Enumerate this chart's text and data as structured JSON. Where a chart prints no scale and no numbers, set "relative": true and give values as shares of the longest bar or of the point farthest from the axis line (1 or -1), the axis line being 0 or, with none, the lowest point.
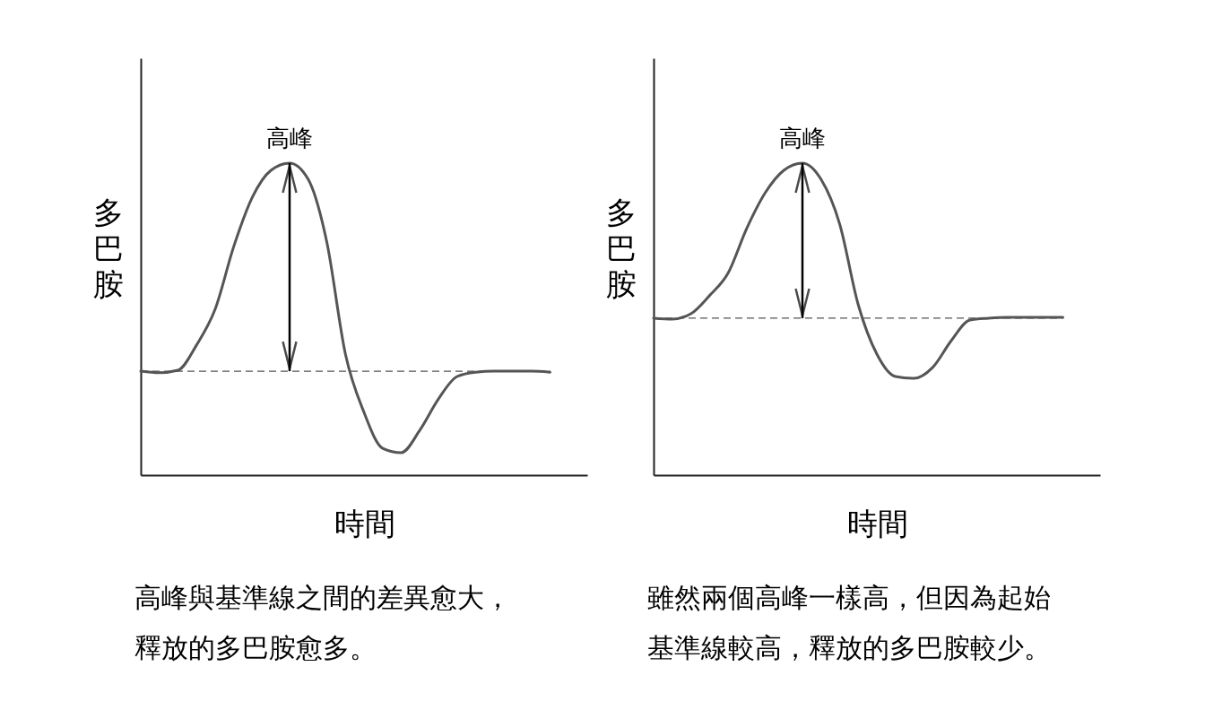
{
  "chart_data": [
    {
      "type": "line",
      "relative": true,
      "tick_labels": false,
      "xlabel": "時間",
      "ylabel": "多巴胺",
      "categories": [
        null,
        null,
        null,
        null,
        null,
        null,
        null,
        null,
        null,
        null,
        null,
        null,
        null,
        null,
        null,
        null,
        null,
        null,
        null,
        null,
        null,
        null,
        null,
        null,
        null
      ],
      "series": [
        {
          "color": "#555555",
          "values": [
            0.333,
            0.328,
            0.336,
            0.417,
            0.532,
            0.733,
            0.891,
            0.977,
            1,
            0.948,
            0.747,
            0.388,
            0.201,
            0.086,
            0.072,
            0.144,
            0.244,
            0.316,
            0.33,
            0.333,
            0.333,
            0.333,
            0.33,
            null,
            null
          ]
        }
      ],
      "ref_lines": [
        {
          "axis": "y",
          "value": 0.333,
          "color": "#555555",
          "line_style": "dashed"
        }
      ],
      "annotations": [
        {
          "text": "高峰",
          "y": 1
        },
        "高峰與基準線之間的差異愈大，",
        "釋放的多巴胺愈多。"
      ]
    },
    {
      "type": "line",
      "relative": true,
      "tick_labels": false,
      "xlabel": "時間",
      "ylabel": "多巴胺",
      "categories": [
        null,
        null,
        null,
        null,
        null,
        null,
        null,
        null,
        null,
        null,
        null,
        null,
        null,
        null,
        null,
        null,
        null,
        null,
        null,
        null,
        null,
        null,
        null,
        null,
        null
      ],
      "series": [
        {
          "color": "#555555",
          "values": [
            0.503,
            0.5,
            0.517,
            0.575,
            0.647,
            0.79,
            0.905,
            0.977,
            1,
            0.948,
            0.805,
            0.546,
            0.388,
            0.316,
            0.31,
            0.345,
            0.431,
            0.497,
            0.503,
            0.506,
            0.506,
            0.506,
            0.506,
            null,
            null
          ]
        }
      ],
      "ref_lines": [
        {
          "axis": "y",
          "value": 0.503,
          "color": "#555555",
          "line_style": "dashed"
        }
      ],
      "annotations": [
        {
          "text": "高峰",
          "y": 1
        },
        "雖然兩個高峰一樣高，但因為起始",
        "基準線較高，釋放的多巴胺較少。"
      ]
    }
  ]
}
